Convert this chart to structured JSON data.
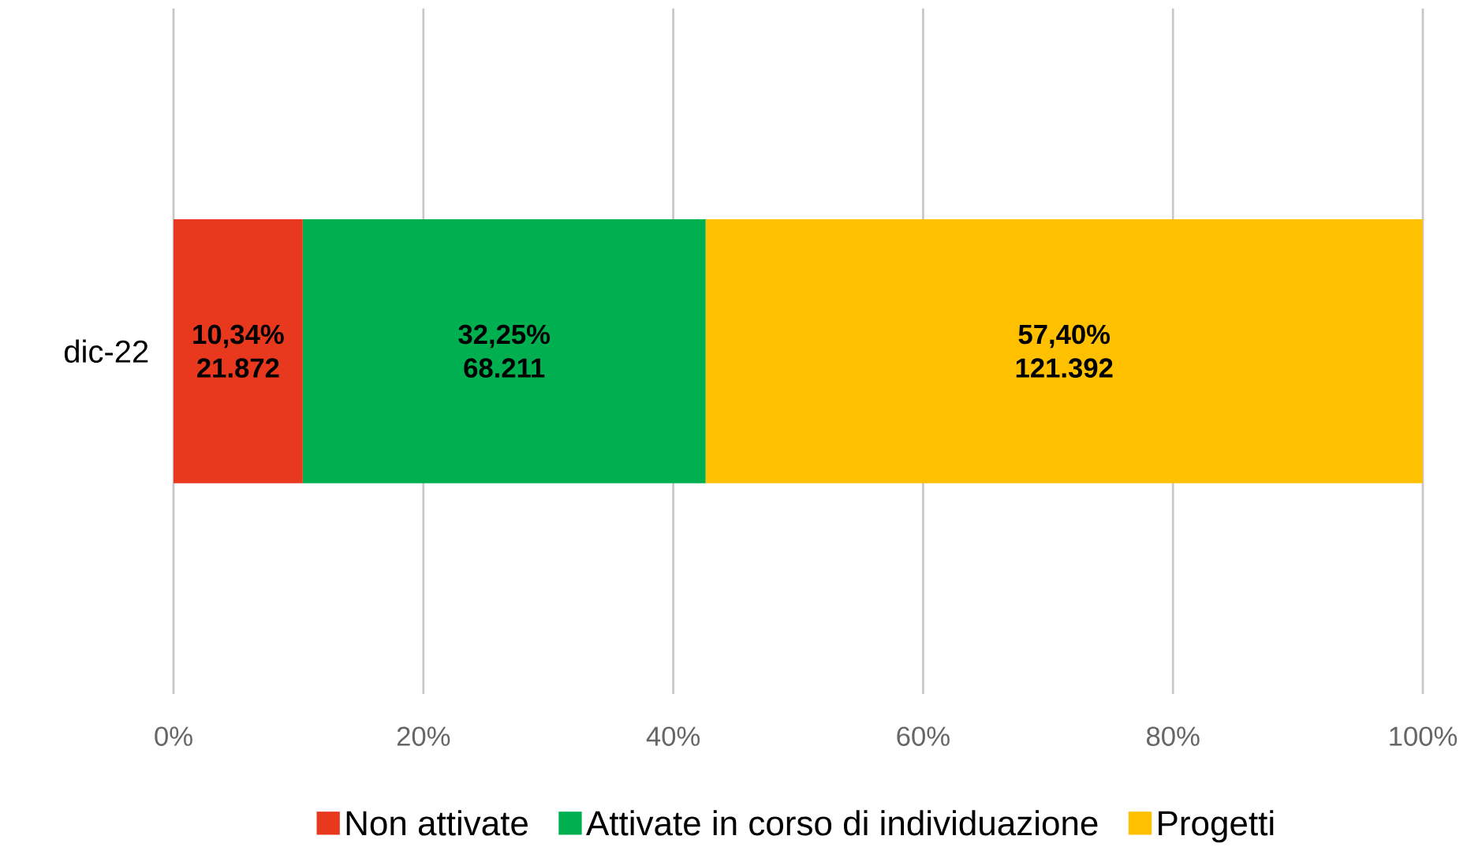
{
  "chart_data": {
    "type": "bar",
    "orientation": "horizontal",
    "stacked": true,
    "categories": [
      "dic-22"
    ],
    "series": [
      {
        "name": "Non attivate",
        "color": "#e8381e",
        "values": [
          10.34
        ],
        "value_labels": [
          "10,34% 21.872"
        ]
      },
      {
        "name": "Attivate in corso di individuazione",
        "color": "#00b050",
        "values": [
          32.25
        ],
        "value_labels": [
          "32,25% 68.211"
        ]
      },
      {
        "name": "Progetti",
        "color": "#ffc000",
        "values": [
          57.4
        ],
        "value_labels": [
          "57,40% 121.392"
        ]
      }
    ],
    "xlim": [
      0,
      100
    ],
    "xticks": [
      {
        "value": 0,
        "label": "0%"
      },
      {
        "value": 20,
        "label": "20%"
      },
      {
        "value": 40,
        "label": "40%"
      },
      {
        "value": 60,
        "label": "60%"
      },
      {
        "value": 80,
        "label": "80%"
      },
      {
        "value": 100,
        "label": "100%"
      }
    ],
    "grid": "x",
    "legend": "bottom"
  }
}
